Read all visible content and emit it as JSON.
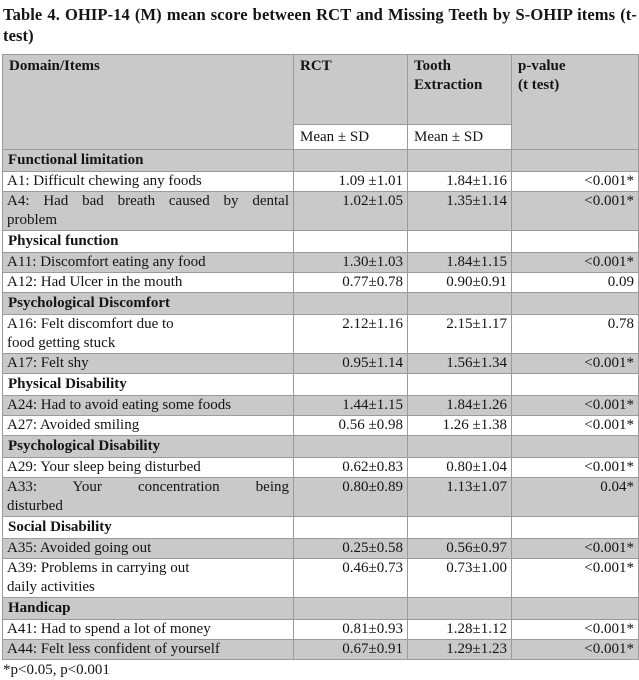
{
  "title": "Table 4. OHIP-14 (M) mean score between RCT and Missing Teeth by S-OHIP items (t-test)",
  "footnote": "*p<0.05, p<0.001",
  "colors": {
    "shaded_row_bg": "#c9c9c9",
    "table_border": "#9b9b9b",
    "text": "#141414",
    "page_bg": "#ffffff"
  },
  "table": {
    "header": {
      "domain_items": "Domain/Items",
      "rct": "RCT",
      "tooth_extraction": "Tooth Extraction",
      "p_value_line1": "p-value",
      "p_value_line2": "(t test)",
      "mean_sd_rct": "Mean ± SD",
      "mean_sd_tooth": "Mean ± SD"
    },
    "rows": [
      {
        "type": "section",
        "lines": [
          "Functional limitation"
        ],
        "shaded": true
      },
      {
        "type": "item",
        "lines": [
          "A1: Difficult chewing any foods"
        ],
        "rct": "1.09 ±1.01",
        "tooth": "1.84±1.16",
        "p": "<0.001*",
        "shaded": false
      },
      {
        "type": "item",
        "lines": [
          "A4: Had bad breath caused by dental",
          "problem"
        ],
        "justify": true,
        "rct": "1.02±1.05",
        "tooth": "1.35±1.14",
        "p": "<0.001*",
        "shaded": true
      },
      {
        "type": "section",
        "lines": [
          "Physical function"
        ],
        "shaded": false
      },
      {
        "type": "item",
        "lines": [
          "A11: Discomfort eating any food"
        ],
        "rct": "1.30±1.03",
        "tooth": "1.84±1.15",
        "p": "<0.001*",
        "shaded": true
      },
      {
        "type": "item",
        "lines": [
          "A12: Had Ulcer in the mouth"
        ],
        "rct": "0.77±0.78",
        "tooth": "0.90±0.91",
        "p": "0.09",
        "shaded": false
      },
      {
        "type": "section",
        "lines": [
          "Psychological Discomfort"
        ],
        "shaded": true
      },
      {
        "type": "item",
        "lines": [
          "A16: Felt discomfort due to",
          "food getting stuck"
        ],
        "rct": "2.12±1.16",
        "tooth": "2.15±1.17",
        "p": "0.78",
        "shaded": false
      },
      {
        "type": "item",
        "lines": [
          "A17: Felt shy"
        ],
        "rct": "0.95±1.14",
        "tooth": "1.56±1.34",
        "p": "<0.001*",
        "shaded": true
      },
      {
        "type": "section",
        "lines": [
          "Physical Disability"
        ],
        "shaded": false
      },
      {
        "type": "item",
        "lines": [
          "A24: Had to avoid eating some foods"
        ],
        "rct": "1.44±1.15",
        "tooth": "1.84±1.26",
        "p": "<0.001*",
        "shaded": true
      },
      {
        "type": "item",
        "lines": [
          "A27: Avoided smiling"
        ],
        "rct": "0.56 ±0.98",
        "tooth": "1.26 ±1.38",
        "p": "<0.001*",
        "shaded": false
      },
      {
        "type": "section",
        "lines": [
          "Psychological Disability"
        ],
        "shaded": true
      },
      {
        "type": "item",
        "lines": [
          "A29: Your sleep being disturbed"
        ],
        "rct": "0.62±0.83",
        "tooth": "0.80±1.04",
        "p": "<0.001*",
        "shaded": false
      },
      {
        "type": "item",
        "lines": [
          "A33: Your concentration being",
          "disturbed"
        ],
        "justify": true,
        "rct": "0.80±0.89",
        "tooth": "1.13±1.07",
        "p": "0.04*",
        "shaded": true
      },
      {
        "type": "section",
        "lines": [
          "Social Disability"
        ],
        "shaded": false
      },
      {
        "type": "item",
        "lines": [
          "A35: Avoided going out"
        ],
        "rct": "0.25±0.58",
        "tooth": "0.56±0.97",
        "p": "<0.001*",
        "shaded": true
      },
      {
        "type": "item",
        "lines": [
          "A39: Problems in carrying out",
          "daily activities"
        ],
        "rct": "0.46±0.73",
        "tooth": "0.73±1.00",
        "p": "<0.001*",
        "shaded": false
      },
      {
        "type": "section",
        "lines": [
          "Handicap"
        ],
        "shaded": true
      },
      {
        "type": "item",
        "lines": [
          "A41: Had to spend a lot of money"
        ],
        "rct": "0.81±0.93",
        "tooth": "1.28±1.12",
        "p": "<0.001*",
        "shaded": false
      },
      {
        "type": "item",
        "lines": [
          "A44: Felt less confident of yourself"
        ],
        "rct": "0.67±0.91",
        "tooth": "1.29±1.23",
        "p": "<0.001*",
        "shaded": true
      }
    ]
  }
}
